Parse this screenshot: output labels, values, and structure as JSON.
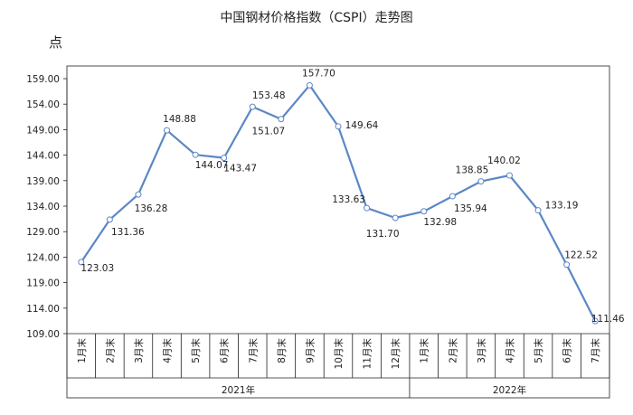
{
  "chart_data": {
    "type": "line",
    "title": "中国钢材价格指数（CSPI）走势图",
    "ylabel": "点",
    "xlabel": "",
    "ylim": [
      109.0,
      159.0
    ],
    "yticks": [
      "159.00",
      "154.00",
      "149.00",
      "144.00",
      "139.00",
      "134.00",
      "129.00",
      "124.00",
      "119.00",
      "114.00",
      "109.00"
    ],
    "categories": [
      "1月末",
      "2月末",
      "3月末",
      "4月末",
      "5月末",
      "6月末",
      "7月末",
      "8月末",
      "9月末",
      "10月末",
      "11月末",
      "12月末",
      "1月末",
      "2月末",
      "3月末",
      "4月末",
      "5月末",
      "6月末",
      "7月末"
    ],
    "groups": [
      {
        "label": "2021年",
        "count": 12
      },
      {
        "label": "2022年",
        "count": 7
      }
    ],
    "series": [
      {
        "values": [
          123.03,
          131.36,
          136.28,
          148.88,
          144.07,
          143.47,
          153.48,
          151.07,
          157.7,
          149.64,
          133.63,
          131.7,
          132.98,
          135.94,
          138.85,
          140.02,
          133.19,
          122.52,
          111.46
        ],
        "labels": [
          "123.03",
          "131.36",
          "136.28",
          "148.88",
          "144.07",
          "143.47",
          "153.48",
          "151.07",
          "157.70",
          "149.64",
          "133.63",
          "131.70",
          "132.98",
          "135.94",
          "138.85",
          "140.02",
          "133.19",
          "122.52",
          "111.46"
        ]
      }
    ],
    "line_color": "#5b87c5",
    "grid": false
  }
}
